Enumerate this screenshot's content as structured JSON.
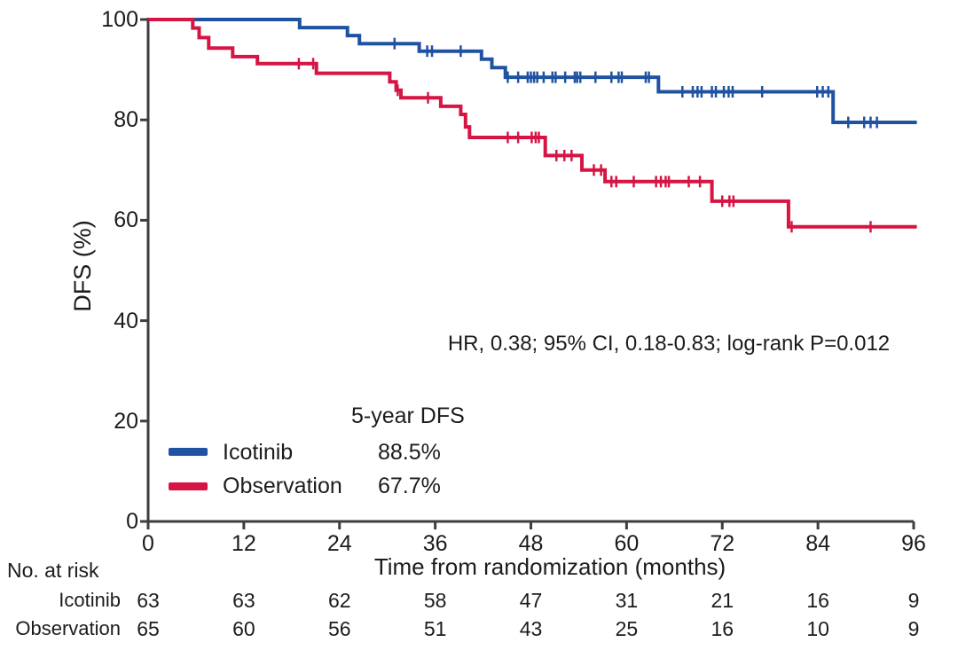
{
  "figure": {
    "colors": {
      "axis": "#3e3e3e",
      "text": "#1c1c1c",
      "background": "#ffffff"
    }
  },
  "chart_data": {
    "type": "line",
    "subtype": "kaplan-meier-step",
    "title": "",
    "xlabel": "Time from randomization (months)",
    "ylabel": "DFS (%)",
    "xlim": [
      0,
      96
    ],
    "ylim": [
      0,
      100
    ],
    "xticks": [
      0,
      12,
      24,
      36,
      48,
      60,
      72,
      84,
      96
    ],
    "yticks": [
      0,
      20,
      40,
      60,
      80,
      100
    ],
    "grid": false,
    "annotation": "HR, 0.38; 95% CI, 0.18-0.83; log-rank P=0.012",
    "legend": {
      "header": "5-year DFS",
      "position": "lower-left-inside",
      "entries": [
        {
          "label": "Icotinib",
          "value": "88.5%",
          "color": "#1f53a1"
        },
        {
          "label": "Observation",
          "value": "67.7%",
          "color": "#d61544"
        }
      ]
    },
    "series": [
      {
        "name": "Icotinib",
        "color": "#1f53a1",
        "steps": [
          [
            0,
            100
          ],
          [
            19,
            98.4
          ],
          [
            25,
            96.8
          ],
          [
            26.5,
            95.2
          ],
          [
            34,
            93.7
          ],
          [
            41.8,
            92.1
          ],
          [
            43.1,
            90.4
          ],
          [
            44.8,
            88.5
          ],
          [
            64,
            85.6
          ],
          [
            85.9,
            79.5
          ],
          [
            96.4,
            79.5
          ]
        ],
        "censor_times": [
          30.9,
          35,
          35.6,
          39.2,
          45.1,
          46.4,
          47.6,
          48,
          48.4,
          48.8,
          49.6,
          50.7,
          51.1,
          52.3,
          53.5,
          53.8,
          54.2,
          56.1,
          58.1,
          59,
          59.4,
          62.4,
          62.8,
          67,
          68.3,
          68.9,
          69.4,
          70.7,
          71.2,
          72.2,
          72.8,
          73.3,
          77,
          83.9,
          84.6,
          85.3,
          87.8,
          89.8,
          90.6,
          91.4
        ]
      },
      {
        "name": "Observation",
        "color": "#d61544",
        "steps": [
          [
            0,
            100
          ],
          [
            5.6,
            98.3
          ],
          [
            6.4,
            96.4
          ],
          [
            7.6,
            94.3
          ],
          [
            10.6,
            92.6
          ],
          [
            13.7,
            91.2
          ],
          [
            21.1,
            89.3
          ],
          [
            30.3,
            87.6
          ],
          [
            31.1,
            85.9
          ],
          [
            31.7,
            84.4
          ],
          [
            36.7,
            82.7
          ],
          [
            39.2,
            81.1
          ],
          [
            39.8,
            78.6
          ],
          [
            40.3,
            76.5
          ],
          [
            49.8,
            72.9
          ],
          [
            54.4,
            70
          ],
          [
            57.3,
            67.7
          ],
          [
            70.7,
            63.8
          ],
          [
            80.3,
            58.7
          ],
          [
            96.4,
            58.7
          ]
        ],
        "censor_times": [
          18.9,
          20.7,
          31.3,
          35.1,
          45.1,
          46.4,
          48.1,
          48.6,
          49,
          51.2,
          52.2,
          53.1,
          55.9,
          56.8,
          58.1,
          58.7,
          60.9,
          63.7,
          64.3,
          64.9,
          65.3,
          67.8,
          69.2,
          72,
          72.9,
          73.4,
          80.7,
          90.6
        ]
      }
    ],
    "risk_table": {
      "title": "No. at risk",
      "times": [
        0,
        12,
        24,
        36,
        48,
        60,
        72,
        84,
        96
      ],
      "rows": [
        {
          "label": "Icotinib",
          "values": [
            "63",
            "63",
            "62",
            "58",
            "47",
            "31",
            "21",
            "16",
            "9"
          ]
        },
        {
          "label": "Observation",
          "values": [
            "65",
            "60",
            "56",
            "51",
            "43",
            "25",
            "16",
            "10",
            "9"
          ]
        }
      ]
    }
  }
}
